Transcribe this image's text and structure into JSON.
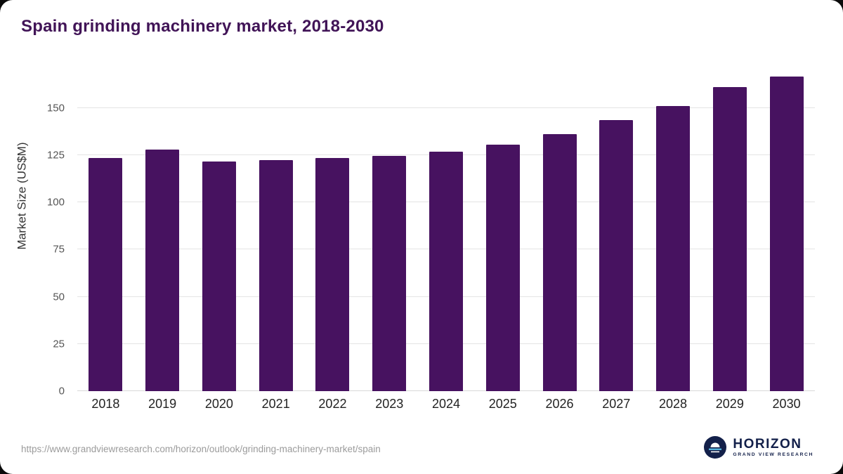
{
  "title": "Spain grinding machinery market, 2018-2030",
  "chart_data": {
    "type": "bar",
    "categories": [
      "2018",
      "2019",
      "2020",
      "2021",
      "2022",
      "2023",
      "2024",
      "2025",
      "2026",
      "2027",
      "2028",
      "2029",
      "2030"
    ],
    "values": [
      123.5,
      128,
      121.5,
      122.5,
      123.5,
      124.5,
      127,
      130.5,
      136,
      143.5,
      151,
      161,
      166.5
    ],
    "title": "Spain grinding machinery market, 2018-2030",
    "xlabel": "",
    "ylabel": "Market Size (US$M)",
    "ylim": [
      0,
      170
    ],
    "yticks": [
      0,
      25,
      50,
      75,
      100,
      125,
      150
    ],
    "bar_color": "#471260",
    "grid": true,
    "legend": "none"
  },
  "footer": {
    "source_url": "https://www.grandviewresearch.com/horizon/outlook/grinding-machinery-market/spain",
    "logo_name": "HORIZON",
    "logo_subtitle": "GRAND VIEW RESEARCH"
  },
  "colors": {
    "title": "#411457",
    "bar": "#471260",
    "gridline": "#e4e4e4",
    "axis_text": "#555555",
    "logo_navy": "#13204a",
    "logo_cyan": "#56b3dc"
  }
}
